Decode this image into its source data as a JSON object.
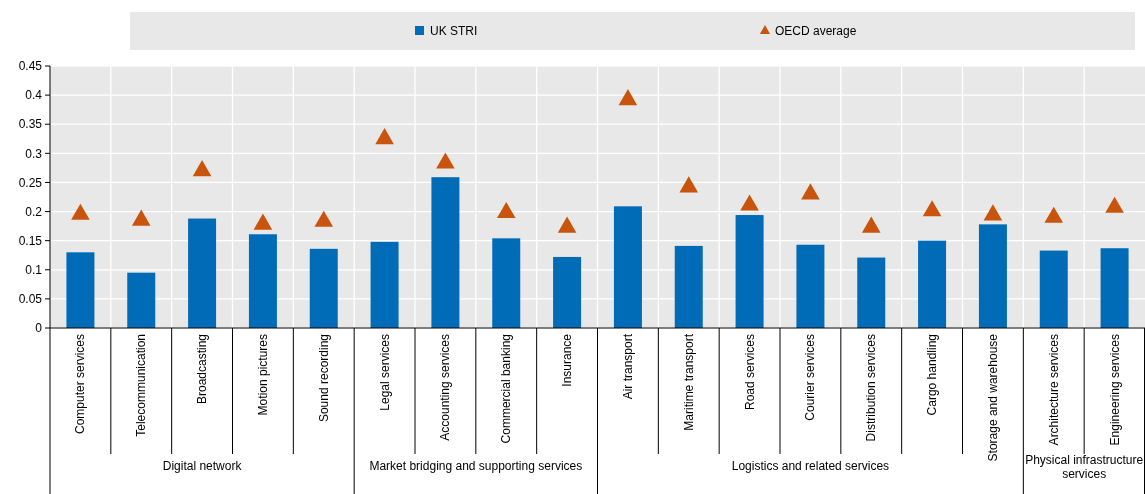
{
  "chart_data": {
    "type": "bar",
    "categories": [
      "Computer services",
      "Telecommunication",
      "Broadcasting",
      "Motion pictures",
      "Sound recording",
      "Legal services",
      "Accounting services",
      "Commercial banking",
      "Insurance",
      "Air transport",
      "Maritime transport",
      "Road services",
      "Courier services",
      "Distribution services",
      "Cargo handling",
      "Storage and warehouse",
      "Architecture services",
      "Engineering services"
    ],
    "series": [
      {
        "name": "UK STRI",
        "color": "#006bb6",
        "values": [
          0.13,
          0.095,
          0.188,
          0.161,
          0.136,
          0.148,
          0.259,
          0.154,
          0.122,
          0.209,
          0.141,
          0.194,
          0.143,
          0.121,
          0.15,
          0.178,
          0.133,
          0.137
        ]
      },
      {
        "name": "OECD average",
        "type": "scatter",
        "color": "#c8540e",
        "values": [
          0.195,
          0.185,
          0.27,
          0.178,
          0.183,
          0.325,
          0.283,
          0.198,
          0.173,
          0.392,
          0.242,
          0.211,
          0.23,
          0.173,
          0.201,
          0.194,
          0.19,
          0.207
        ]
      }
    ],
    "ylim": [
      0,
      0.45
    ],
    "yticks": [
      0,
      0.05,
      0.1,
      0.15,
      0.2,
      0.25,
      0.3,
      0.35,
      0.4,
      0.45
    ],
    "grid": true,
    "legend": "top",
    "marker": "triangle",
    "annotations": [
      "Digital network",
      "Market bridging and supporting services",
      "Logistics and related services",
      "Physical infrastructure services"
    ]
  }
}
